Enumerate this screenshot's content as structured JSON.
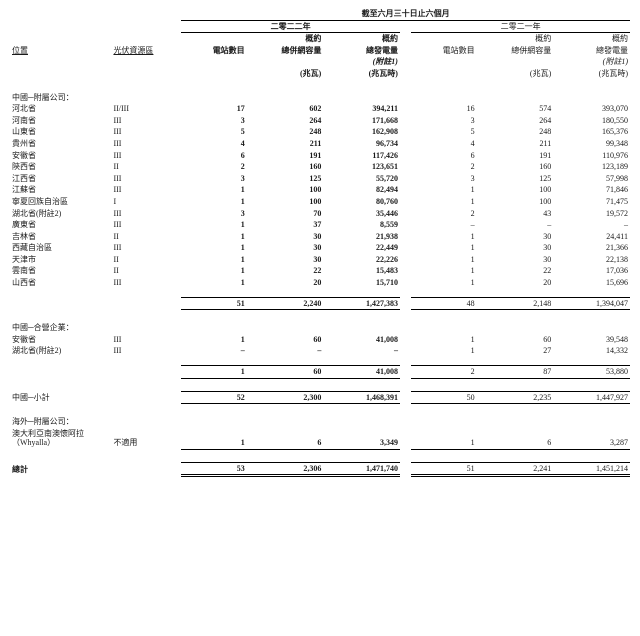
{
  "header": {
    "period_line": "截至六月三十日止六個月",
    "y2022": "二零二二年",
    "y2021": "二零二一年",
    "col_loc": "位置",
    "col_zone": "光伏資源區",
    "col_cnt": "電站數目",
    "col_cap_l1": "概約",
    "col_cap_l2": "總併網容量",
    "col_gen_l1": "概約",
    "col_gen_l2": "總發電量",
    "note1": "(附註1)",
    "unit_mw": "(兆瓦)",
    "unit_mwh": "(兆瓦時)"
  },
  "sections": {
    "china_sub": "中國─附屬公司：",
    "china_jv": "中國─合營企業：",
    "china_subtotal": "中國─小計",
    "overseas_sub": "海外─附屬公司：",
    "total": "總計"
  },
  "rows_sub": [
    {
      "loc": "河北省",
      "zone": "II/III",
      "c22": "17",
      "cap22": "602",
      "gen22": "394,211",
      "c21": "16",
      "cap21": "574",
      "gen21": "393,070"
    },
    {
      "loc": "河南省",
      "zone": "III",
      "c22": "3",
      "cap22": "264",
      "gen22": "171,668",
      "c21": "3",
      "cap21": "264",
      "gen21": "180,550"
    },
    {
      "loc": "山東省",
      "zone": "III",
      "c22": "5",
      "cap22": "248",
      "gen22": "162,908",
      "c21": "5",
      "cap21": "248",
      "gen21": "165,376"
    },
    {
      "loc": "貴州省",
      "zone": "III",
      "c22": "4",
      "cap22": "211",
      "gen22": "96,734",
      "c21": "4",
      "cap21": "211",
      "gen21": "99,348"
    },
    {
      "loc": "安徽省",
      "zone": "III",
      "c22": "6",
      "cap22": "191",
      "gen22": "117,426",
      "c21": "6",
      "cap21": "191",
      "gen21": "110,976"
    },
    {
      "loc": "陝西省",
      "zone": "II",
      "c22": "2",
      "cap22": "160",
      "gen22": "123,651",
      "c21": "2",
      "cap21": "160",
      "gen21": "123,189"
    },
    {
      "loc": "江西省",
      "zone": "III",
      "c22": "3",
      "cap22": "125",
      "gen22": "55,720",
      "c21": "3",
      "cap21": "125",
      "gen21": "57,998"
    },
    {
      "loc": "江蘇省",
      "zone": "III",
      "c22": "1",
      "cap22": "100",
      "gen22": "82,494",
      "c21": "1",
      "cap21": "100",
      "gen21": "71,846"
    },
    {
      "loc": "寧夏回族自治區",
      "zone": "I",
      "c22": "1",
      "cap22": "100",
      "gen22": "80,760",
      "c21": "1",
      "cap21": "100",
      "gen21": "71,475"
    },
    {
      "loc": "湖北省(附註2)",
      "zone": "III",
      "c22": "3",
      "cap22": "70",
      "gen22": "35,446",
      "c21": "2",
      "cap21": "43",
      "gen21": "19,572"
    },
    {
      "loc": "廣東省",
      "zone": "III",
      "c22": "1",
      "cap22": "37",
      "gen22": "8,559",
      "c21": "–",
      "cap21": "–",
      "gen21": "–"
    },
    {
      "loc": "吉林省",
      "zone": "II",
      "c22": "1",
      "cap22": "30",
      "gen22": "21,938",
      "c21": "1",
      "cap21": "30",
      "gen21": "24,411"
    },
    {
      "loc": "西藏自治區",
      "zone": "III",
      "c22": "1",
      "cap22": "30",
      "gen22": "22,449",
      "c21": "1",
      "cap21": "30",
      "gen21": "21,366"
    },
    {
      "loc": "天津市",
      "zone": "II",
      "c22": "1",
      "cap22": "30",
      "gen22": "22,226",
      "c21": "1",
      "cap21": "30",
      "gen21": "22,138"
    },
    {
      "loc": "雲南省",
      "zone": "II",
      "c22": "1",
      "cap22": "22",
      "gen22": "15,483",
      "c21": "1",
      "cap21": "22",
      "gen21": "17,036"
    },
    {
      "loc": "山西省",
      "zone": "III",
      "c22": "1",
      "cap22": "20",
      "gen22": "15,710",
      "c21": "1",
      "cap21": "20",
      "gen21": "15,696"
    }
  ],
  "subtotal_sub": {
    "c22": "51",
    "cap22": "2,240",
    "gen22": "1,427,383",
    "c21": "48",
    "cap21": "2,148",
    "gen21": "1,394,047"
  },
  "rows_jv": [
    {
      "loc": "安徽省",
      "zone": "III",
      "c22": "1",
      "cap22": "60",
      "gen22": "41,008",
      "c21": "1",
      "cap21": "60",
      "gen21": "39,548"
    },
    {
      "loc": "湖北省(附註2)",
      "zone": "III",
      "c22": "–",
      "cap22": "–",
      "gen22": "–",
      "c21": "1",
      "cap21": "27",
      "gen21": "14,332"
    }
  ],
  "subtotal_jv": {
    "c22": "1",
    "cap22": "60",
    "gen22": "41,008",
    "c21": "2",
    "cap21": "87",
    "gen21": "53,880"
  },
  "china_total": {
    "c22": "52",
    "cap22": "2,300",
    "gen22": "1,468,391",
    "c21": "50",
    "cap21": "2,235",
    "gen21": "1,447,927"
  },
  "overseas": {
    "loc": "澳大利亞南澳懷阿拉（Whyalla）",
    "zone": "不適用",
    "c22": "1",
    "cap22": "6",
    "gen22": "3,349",
    "c21": "1",
    "cap21": "6",
    "gen21": "3,287"
  },
  "grand_total": {
    "c22": "53",
    "cap22": "2,306",
    "gen22": "1,471,740",
    "c21": "51",
    "cap21": "2,241",
    "gen21": "1,451,214"
  }
}
